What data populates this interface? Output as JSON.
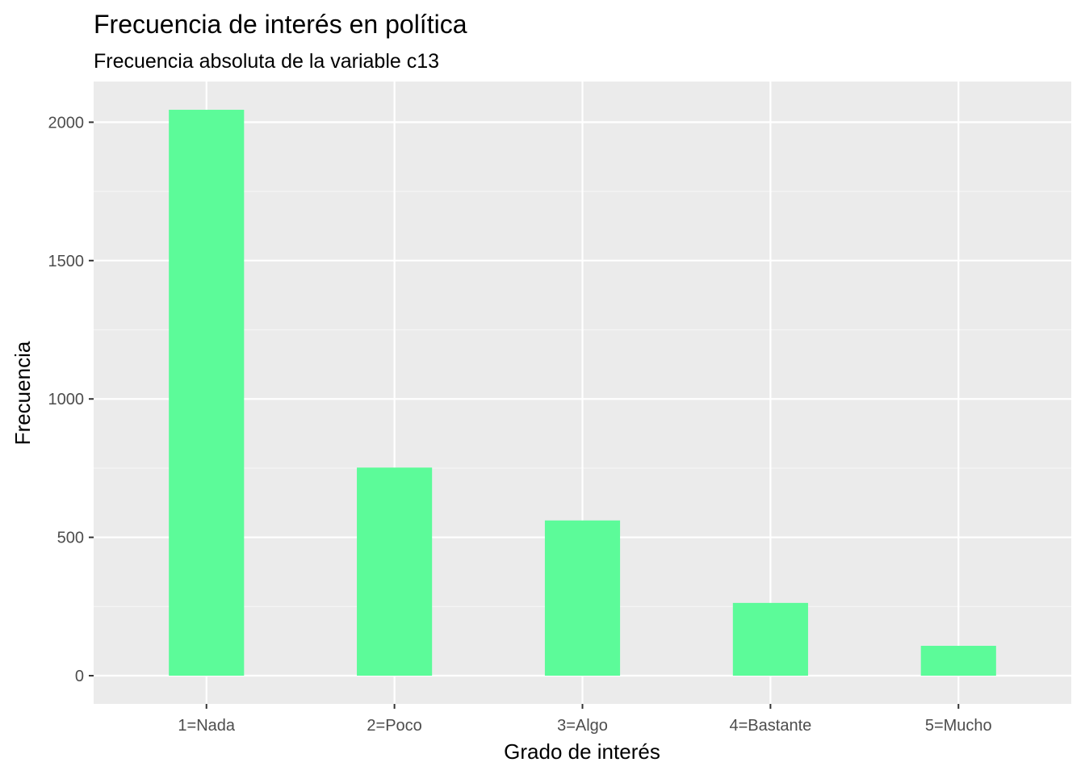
{
  "chart_data": {
    "type": "bar",
    "title": "Frecuencia de interés en política",
    "subtitle": "Frecuencia absoluta de la variable c13",
    "xlabel": "Grado de interés",
    "ylabel": "Frecuencia",
    "categories": [
      "1=Nada",
      "2=Poco",
      "3=Algo",
      "4=Bastante",
      "5=Mucho"
    ],
    "values": [
      2045,
      752,
      561,
      263,
      108
    ],
    "ylim": [
      -102,
      2147
    ],
    "yticks": [
      0,
      500,
      1000,
      1500,
      2000
    ],
    "grid": true,
    "legend": "none",
    "colors": {
      "bar": "#5CFB99",
      "panel": "#EBEBEB",
      "grid_major": "#FFFFFF",
      "grid_minor": "#F5F5F5",
      "tick": "#333333",
      "tick_label": "#4D4D4D"
    }
  }
}
